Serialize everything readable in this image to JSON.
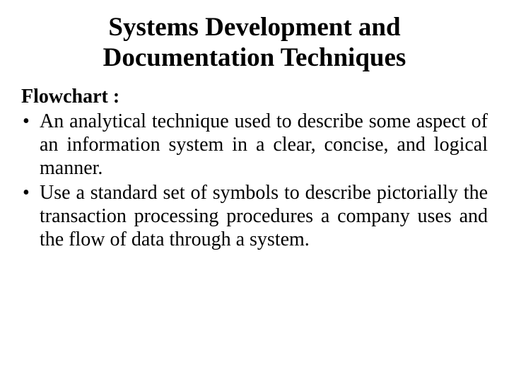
{
  "title": "Systems Development and Documentation Techniques",
  "subheading": "Flowchart :",
  "bullets": [
    "An analytical technique used to describe some aspect of an information system in a clear, concise, and logical manner.",
    "Use a standard set of symbols to describe pictorially the transaction processing procedures a company uses and the flow of data through a system."
  ],
  "styling": {
    "background_color": "#ffffff",
    "text_color": "#000000",
    "font_family": "Times New Roman",
    "title_fontsize": 37,
    "title_fontweight": "bold",
    "subheading_fontsize": 28,
    "subheading_fontweight": "bold",
    "body_fontsize": 28,
    "body_align": "justify",
    "line_height": 1.18
  }
}
